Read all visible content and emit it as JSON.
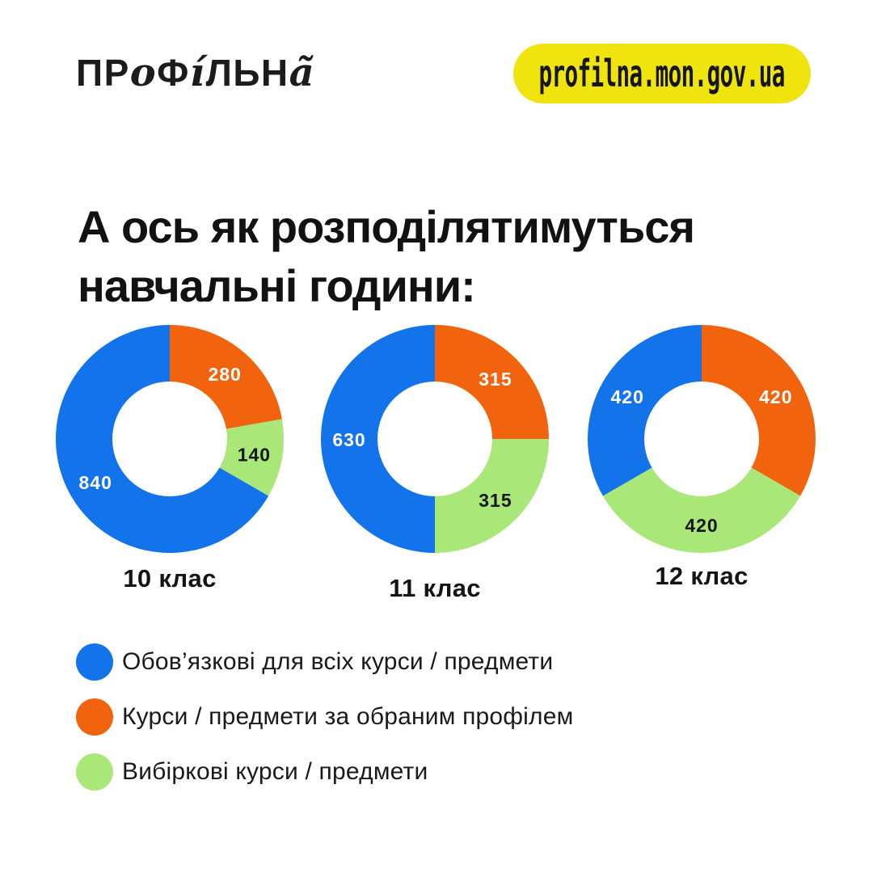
{
  "header": {
    "logo": {
      "name": "ПРОФІЛЬНА",
      "segments": [
        {
          "text": "ПР",
          "style": "plain"
        },
        {
          "text": "о",
          "style": "script"
        },
        {
          "text": "Ф",
          "style": "plain"
        },
        {
          "text": "і́",
          "style": "script"
        },
        {
          "text": "ЛЬН",
          "style": "plain"
        },
        {
          "text": "а̃",
          "style": "script"
        }
      ]
    },
    "site_badge": "profilna.mon.gov.ua"
  },
  "title": {
    "line1": "А ось як розподілятимуться",
    "line2": "навчальні години:"
  },
  "colors": {
    "mandatory": "#1273EB",
    "profile": "#F2630D",
    "elective": "#A9E779",
    "badge_yellow": "#F0E40F",
    "text_dark": "#141414"
  },
  "value_label_colors": {
    "mandatory": "#FFFFFF",
    "profile": "#FFFFFF",
    "elective": "#161616"
  },
  "legend": [
    {
      "key": "mandatory",
      "label": "Обов’язкові для всіх курси / предмети"
    },
    {
      "key": "profile",
      "label": "Курси / предмети за обраним профілем"
    },
    {
      "key": "elective",
      "label": "Вибіркові курси / предмети"
    }
  ],
  "chart_data": [
    {
      "type": "pie",
      "variant": "donut",
      "category": "10 клас",
      "start_angle_deg": 0,
      "direction": "clockwise",
      "total": 1260,
      "slices": [
        {
          "key": "profile",
          "name": "Курси / предмети за обраним профілем",
          "value": 280
        },
        {
          "key": "elective",
          "name": "Вибіркові курси / предмети",
          "value": 140
        },
        {
          "key": "mandatory",
          "name": "Обов’язкові для всіх курси / предмети",
          "value": 840
        }
      ]
    },
    {
      "type": "pie",
      "variant": "donut",
      "category": "11 клас",
      "start_angle_deg": 0,
      "direction": "clockwise",
      "total": 1260,
      "slices": [
        {
          "key": "profile",
          "name": "Курси / предмети за обраним профілем",
          "value": 315
        },
        {
          "key": "elective",
          "name": "Вибіркові курси / предмети",
          "value": 315
        },
        {
          "key": "mandatory",
          "name": "Обов’язкові для всіх курси / предмети",
          "value": 630
        }
      ]
    },
    {
      "type": "pie",
      "variant": "donut",
      "category": "12 клас",
      "start_angle_deg": 0,
      "direction": "clockwise",
      "total": 1260,
      "slices": [
        {
          "key": "profile",
          "name": "Курси / предмети за обраним профілем",
          "value": 420
        },
        {
          "key": "elective",
          "name": "Вибіркові курси / предмети",
          "value": 420
        },
        {
          "key": "mandatory",
          "name": "Обов’язкові для всіх курси / предмети",
          "value": 420
        }
      ]
    }
  ]
}
